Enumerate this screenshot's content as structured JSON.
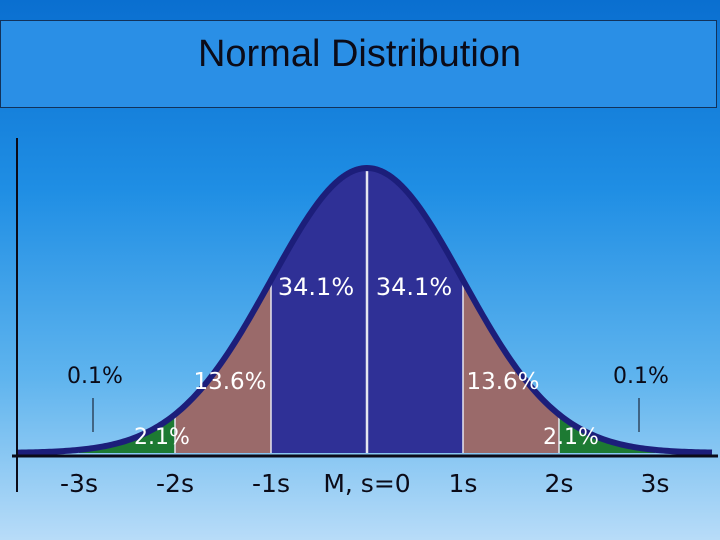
{
  "slide": {
    "title": "Normal Distribution"
  },
  "chart_data": {
    "type": "area",
    "title": "Normal Distribution",
    "xlim": [
      -3.7,
      3.7
    ],
    "x_ticks": [
      {
        "x": -3,
        "label": "-3s"
      },
      {
        "x": -2,
        "label": "-2s"
      },
      {
        "x": -1,
        "label": "-1s"
      },
      {
        "x": 0,
        "label": "M, s=0"
      },
      {
        "x": 1,
        "label": "1s"
      },
      {
        "x": 2,
        "label": "2s"
      },
      {
        "x": 3,
        "label": "3s"
      }
    ],
    "regions": [
      {
        "from": -3,
        "to": -2,
        "value": "2.1%",
        "color": "#1d7a33"
      },
      {
        "from": -2,
        "to": -1,
        "value": "13.6%",
        "color": "#9a6a6a"
      },
      {
        "from": -1,
        "to": 0,
        "value": "34.1%",
        "color": "#2f3096"
      },
      {
        "from": 0,
        "to": 1,
        "value": "34.1%",
        "color": "#2f3096"
      },
      {
        "from": 1,
        "to": 2,
        "value": "13.6%",
        "color": "#9a6a6a"
      },
      {
        "from": 2,
        "to": 3,
        "value": "2.1%",
        "color": "#1d7a33"
      }
    ],
    "tails": [
      {
        "side": "left",
        "value": "0.1%"
      },
      {
        "side": "right",
        "value": "0.1%"
      }
    ],
    "tail_color": "#d8d8e6",
    "curve_color": "#1c1e7a",
    "axis_color": "#0b0b18"
  }
}
